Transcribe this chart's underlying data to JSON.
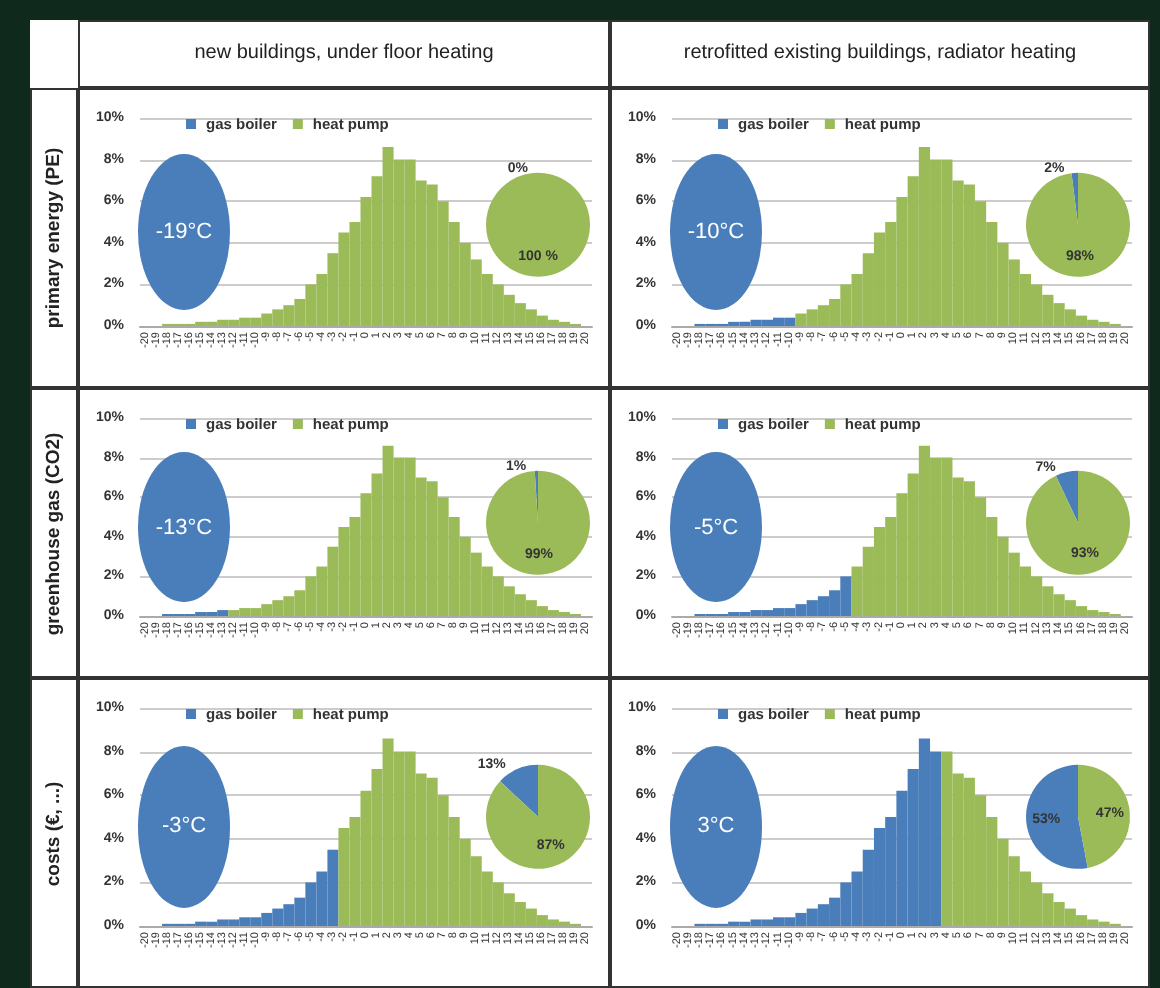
{
  "chart_data": [
    {
      "type": "bar",
      "title": "new buildings, under floor heating",
      "ylabel": "primary energy (PE)",
      "stacked": true,
      "legend": "top left",
      "grid": "y",
      "annotations": [
        "-19°C"
      ],
      "categories": [
        "-20",
        "-19",
        "-18",
        "-17",
        "-16",
        "-15",
        "-14",
        "-13",
        "-12",
        "-11",
        "-10",
        "-9",
        "-8",
        "-7",
        "-6",
        "-5",
        "-4",
        "-3",
        "-2",
        "-1",
        "0",
        "1",
        "2",
        "3",
        "4",
        "5",
        "6",
        "7",
        "8",
        "9",
        "10",
        "11",
        "12",
        "13",
        "14",
        "15",
        "16",
        "17",
        "18",
        "19",
        "20"
      ],
      "ylim": [
        0,
        10
      ],
      "yticks": [
        {
          "value": 0,
          "label": "0%"
        },
        {
          "value": 2,
          "label": "2%"
        },
        {
          "value": 4,
          "label": "4%"
        },
        {
          "value": 6,
          "label": "6%"
        },
        {
          "value": 8,
          "label": "8%"
        },
        {
          "value": 10,
          "label": "10%"
        }
      ],
      "series": [
        {
          "name": "gas boiler",
          "color": "#4a7ebb",
          "values": [
            0,
            0,
            null,
            null,
            null,
            null,
            null,
            null,
            null,
            null,
            null,
            null,
            null,
            null,
            null,
            null,
            null,
            null,
            null,
            null,
            null,
            null,
            null,
            null,
            null,
            null,
            null,
            null,
            null,
            null,
            null,
            null,
            null,
            null,
            null,
            null,
            null,
            null,
            null,
            null,
            null
          ]
        },
        {
          "name": "heat pump",
          "color": "#9bbb59",
          "values": [
            null,
            null,
            0.1,
            0.1,
            0.1,
            0.2,
            0.2,
            0.3,
            0.3,
            0.4,
            0.4,
            0.6,
            0.8,
            1.0,
            1.3,
            2.0,
            2.5,
            3.5,
            4.5,
            5.0,
            6.2,
            7.2,
            8.6,
            8.0,
            8.0,
            7.0,
            6.8,
            6.0,
            5.0,
            4.0,
            3.2,
            2.5,
            2.0,
            1.5,
            1.1,
            0.8,
            0.5,
            0.3,
            0.2,
            0.1,
            0
          ]
        }
      ]
    },
    {
      "type": "pie",
      "categories": [
        null,
        null
      ],
      "values": [
        0,
        100
      ],
      "colors": [
        "#4a7ebb",
        "#9bbb59"
      ],
      "value_labels": [
        "0%",
        "100 %"
      ]
    },
    {
      "type": "bar",
      "title": "retrofitted existing buildings, radiator heating",
      "stacked": true,
      "legend": "top left",
      "grid": "y",
      "annotations": [
        "-10°C"
      ],
      "categories": [
        "-20",
        "-19",
        "-18",
        "-17",
        "-16",
        "-15",
        "-14",
        "-13",
        "-12",
        "-11",
        "-10",
        "-9",
        "-8",
        "-7",
        "-6",
        "-5",
        "-4",
        "-3",
        "-2",
        "-1",
        "0",
        "1",
        "2",
        "3",
        "4",
        "5",
        "6",
        "7",
        "8",
        "9",
        "10",
        "11",
        "12",
        "13",
        "14",
        "15",
        "16",
        "17",
        "18",
        "19",
        "20"
      ],
      "ylim": [
        0,
        10
      ],
      "yticks": [
        {
          "value": 0,
          "label": "0%"
        },
        {
          "value": 2,
          "label": "2%"
        },
        {
          "value": 4,
          "label": "4%"
        },
        {
          "value": 6,
          "label": "6%"
        },
        {
          "value": 8,
          "label": "8%"
        },
        {
          "value": 10,
          "label": "10%"
        }
      ],
      "series": [
        {
          "name": "gas boiler",
          "color": "#4a7ebb",
          "values": [
            0,
            0,
            0.1,
            0.1,
            0.1,
            0.2,
            0.2,
            0.3,
            0.3,
            0.4,
            0.4,
            null,
            null,
            null,
            null,
            null,
            null,
            null,
            null,
            null,
            null,
            null,
            null,
            null,
            null,
            null,
            null,
            null,
            null,
            null,
            null,
            null,
            null,
            null,
            null,
            null,
            null,
            null,
            null,
            null,
            null
          ]
        },
        {
          "name": "heat pump",
          "color": "#9bbb59",
          "values": [
            null,
            null,
            null,
            null,
            null,
            null,
            null,
            null,
            null,
            null,
            null,
            0.6,
            0.8,
            1.0,
            1.3,
            2.0,
            2.5,
            3.5,
            4.5,
            5.0,
            6.2,
            7.2,
            8.6,
            8.0,
            8.0,
            7.0,
            6.8,
            6.0,
            5.0,
            4.0,
            3.2,
            2.5,
            2.0,
            1.5,
            1.1,
            0.8,
            0.5,
            0.3,
            0.2,
            0.1,
            0
          ]
        }
      ]
    },
    {
      "type": "pie",
      "categories": [
        null,
        null
      ],
      "values": [
        2,
        98
      ],
      "colors": [
        "#4a7ebb",
        "#9bbb59"
      ],
      "value_labels": [
        "2%",
        "98%"
      ]
    },
    {
      "type": "bar",
      "ylabel": "greenhouse gas (CO2)",
      "stacked": true,
      "legend": "top left",
      "grid": "y",
      "annotations": [
        "-13°C"
      ],
      "categories": [
        "-20",
        "-19",
        "-18",
        "-17",
        "-16",
        "-15",
        "-14",
        "-13",
        "-12",
        "-11",
        "-10",
        "-9",
        "-8",
        "-7",
        "-6",
        "-5",
        "-4",
        "-3",
        "-2",
        "-1",
        "0",
        "1",
        "2",
        "3",
        "4",
        "5",
        "6",
        "7",
        "8",
        "9",
        "10",
        "11",
        "12",
        "13",
        "14",
        "15",
        "16",
        "17",
        "18",
        "19",
        "20"
      ],
      "ylim": [
        0,
        10
      ],
      "yticks": [
        {
          "value": 0,
          "label": "0%"
        },
        {
          "value": 2,
          "label": "2%"
        },
        {
          "value": 4,
          "label": "4%"
        },
        {
          "value": 6,
          "label": "6%"
        },
        {
          "value": 8,
          "label": "8%"
        },
        {
          "value": 10,
          "label": "10%"
        }
      ],
      "series": [
        {
          "name": "gas boiler",
          "color": "#4a7ebb",
          "values": [
            0,
            0,
            0.1,
            0.1,
            0.1,
            0.2,
            0.2,
            0.3,
            null,
            null,
            null,
            null,
            null,
            null,
            null,
            null,
            null,
            null,
            null,
            null,
            null,
            null,
            null,
            null,
            null,
            null,
            null,
            null,
            null,
            null,
            null,
            null,
            null,
            null,
            null,
            null,
            null,
            null,
            null,
            null,
            null
          ]
        },
        {
          "name": "heat pump",
          "color": "#9bbb59",
          "values": [
            null,
            null,
            null,
            null,
            null,
            null,
            null,
            null,
            0.3,
            0.4,
            0.4,
            0.6,
            0.8,
            1.0,
            1.3,
            2.0,
            2.5,
            3.5,
            4.5,
            5.0,
            6.2,
            7.2,
            8.6,
            8.0,
            8.0,
            7.0,
            6.8,
            6.0,
            5.0,
            4.0,
            3.2,
            2.5,
            2.0,
            1.5,
            1.1,
            0.8,
            0.5,
            0.3,
            0.2,
            0.1,
            0
          ]
        }
      ]
    },
    {
      "type": "pie",
      "categories": [
        null,
        null
      ],
      "values": [
        1,
        99
      ],
      "colors": [
        "#4a7ebb",
        "#9bbb59"
      ],
      "value_labels": [
        "1%",
        "99%"
      ]
    },
    {
      "type": "bar",
      "stacked": true,
      "legend": "top left",
      "grid": "y",
      "annotations": [
        "-5°C"
      ],
      "categories": [
        "-20",
        "-19",
        "-18",
        "-17",
        "-16",
        "-15",
        "-14",
        "-13",
        "-12",
        "-11",
        "-10",
        "-9",
        "-8",
        "-7",
        "-6",
        "-5",
        "-4",
        "-3",
        "-2",
        "-1",
        "0",
        "1",
        "2",
        "3",
        "4",
        "5",
        "6",
        "7",
        "8",
        "9",
        "10",
        "11",
        "12",
        "13",
        "14",
        "15",
        "16",
        "17",
        "18",
        "19",
        "20"
      ],
      "ylim": [
        0,
        10
      ],
      "yticks": [
        {
          "value": 0,
          "label": "0%"
        },
        {
          "value": 2,
          "label": "2%"
        },
        {
          "value": 4,
          "label": "4%"
        },
        {
          "value": 6,
          "label": "6%"
        },
        {
          "value": 8,
          "label": "8%"
        },
        {
          "value": 10,
          "label": "10%"
        }
      ],
      "series": [
        {
          "name": "gas boiler",
          "color": "#4a7ebb",
          "values": [
            0,
            0,
            0.1,
            0.1,
            0.1,
            0.2,
            0.2,
            0.3,
            0.3,
            0.4,
            0.4,
            0.6,
            0.8,
            1.0,
            1.3,
            2.0,
            null,
            null,
            null,
            null,
            null,
            null,
            null,
            null,
            null,
            null,
            null,
            null,
            null,
            null,
            null,
            null,
            null,
            null,
            null,
            null,
            null,
            null,
            null,
            null,
            null
          ]
        },
        {
          "name": "heat pump",
          "color": "#9bbb59",
          "values": [
            null,
            null,
            null,
            null,
            null,
            null,
            null,
            null,
            null,
            null,
            null,
            null,
            null,
            null,
            null,
            null,
            2.5,
            3.5,
            4.5,
            5.0,
            6.2,
            7.2,
            8.6,
            8.0,
            8.0,
            7.0,
            6.8,
            6.0,
            5.0,
            4.0,
            3.2,
            2.5,
            2.0,
            1.5,
            1.1,
            0.8,
            0.5,
            0.3,
            0.2,
            0.1,
            0
          ]
        }
      ]
    },
    {
      "type": "pie",
      "categories": [
        null,
        null
      ],
      "values": [
        7,
        93
      ],
      "colors": [
        "#4a7ebb",
        "#9bbb59"
      ],
      "value_labels": [
        "7%",
        "93%"
      ]
    },
    {
      "type": "bar",
      "ylabel": "costs (€, ...)",
      "stacked": true,
      "legend": "top left",
      "grid": "y",
      "annotations": [
        "-3°C"
      ],
      "categories": [
        "-20",
        "-19",
        "-18",
        "-17",
        "-16",
        "-15",
        "-14",
        "-13",
        "-12",
        "-11",
        "-10",
        "-9",
        "-8",
        "-7",
        "-6",
        "-5",
        "-4",
        "-3",
        "-2",
        "-1",
        "0",
        "1",
        "2",
        "3",
        "4",
        "5",
        "6",
        "7",
        "8",
        "9",
        "10",
        "11",
        "12",
        "13",
        "14",
        "15",
        "16",
        "17",
        "18",
        "19",
        "20"
      ],
      "ylim": [
        0,
        10
      ],
      "yticks": [
        {
          "value": 0,
          "label": "0%"
        },
        {
          "value": 2,
          "label": "2%"
        },
        {
          "value": 4,
          "label": "4%"
        },
        {
          "value": 6,
          "label": "6%"
        },
        {
          "value": 8,
          "label": "8%"
        },
        {
          "value": 10,
          "label": "10%"
        }
      ],
      "series": [
        {
          "name": "gas boiler",
          "color": "#4a7ebb",
          "values": [
            0,
            0,
            0.1,
            0.1,
            0.1,
            0.2,
            0.2,
            0.3,
            0.3,
            0.4,
            0.4,
            0.6,
            0.8,
            1.0,
            1.3,
            2.0,
            2.5,
            3.5,
            null,
            null,
            null,
            null,
            null,
            null,
            null,
            null,
            null,
            null,
            null,
            null,
            null,
            null,
            null,
            null,
            null,
            null,
            null,
            null,
            null,
            null,
            null
          ]
        },
        {
          "name": "heat pump",
          "color": "#9bbb59",
          "values": [
            null,
            null,
            null,
            null,
            null,
            null,
            null,
            null,
            null,
            null,
            null,
            null,
            null,
            null,
            null,
            null,
            null,
            null,
            4.5,
            5.0,
            6.2,
            7.2,
            8.6,
            8.0,
            8.0,
            7.0,
            6.8,
            6.0,
            5.0,
            4.0,
            3.2,
            2.5,
            2.0,
            1.5,
            1.1,
            0.8,
            0.5,
            0.3,
            0.2,
            0.1,
            0
          ]
        }
      ]
    },
    {
      "type": "pie",
      "categories": [
        null,
        null
      ],
      "values": [
        13,
        87
      ],
      "colors": [
        "#4a7ebb",
        "#9bbb59"
      ],
      "value_labels": [
        "13%",
        "87%"
      ]
    },
    {
      "type": "bar",
      "stacked": true,
      "legend": "top left",
      "grid": "y",
      "annotations": [
        "3°C"
      ],
      "categories": [
        "-20",
        "-19",
        "-18",
        "-17",
        "-16",
        "-15",
        "-14",
        "-13",
        "-12",
        "-11",
        "-10",
        "-9",
        "-8",
        "-7",
        "-6",
        "-5",
        "-4",
        "-3",
        "-2",
        "-1",
        "0",
        "1",
        "2",
        "3",
        "4",
        "5",
        "6",
        "7",
        "8",
        "9",
        "10",
        "11",
        "12",
        "13",
        "14",
        "15",
        "16",
        "17",
        "18",
        "19",
        "20"
      ],
      "ylim": [
        0,
        10
      ],
      "yticks": [
        {
          "value": 0,
          "label": "0%"
        },
        {
          "value": 2,
          "label": "2%"
        },
        {
          "value": 4,
          "label": "4%"
        },
        {
          "value": 6,
          "label": "6%"
        },
        {
          "value": 8,
          "label": "8%"
        },
        {
          "value": 10,
          "label": "10%"
        }
      ],
      "series": [
        {
          "name": "gas boiler",
          "color": "#4a7ebb",
          "values": [
            0,
            0,
            0.1,
            0.1,
            0.1,
            0.2,
            0.2,
            0.3,
            0.3,
            0.4,
            0.4,
            0.6,
            0.8,
            1.0,
            1.3,
            2.0,
            2.5,
            3.5,
            4.5,
            5.0,
            6.2,
            7.2,
            8.6,
            8.0,
            null,
            null,
            null,
            null,
            null,
            null,
            null,
            null,
            null,
            null,
            null,
            null,
            null,
            null,
            null,
            null,
            null
          ]
        },
        {
          "name": "heat pump",
          "color": "#9bbb59",
          "values": [
            null,
            null,
            null,
            null,
            null,
            null,
            null,
            null,
            null,
            null,
            null,
            null,
            null,
            null,
            null,
            null,
            null,
            null,
            null,
            null,
            null,
            null,
            null,
            null,
            8.0,
            7.0,
            6.8,
            6.0,
            5.0,
            4.0,
            3.2,
            2.5,
            2.0,
            1.5,
            1.1,
            0.8,
            0.5,
            0.3,
            0.2,
            0.1,
            0
          ]
        }
      ]
    },
    {
      "type": "pie",
      "categories": [
        null,
        null
      ],
      "values": [
        53,
        47
      ],
      "colors": [
        "#4a7ebb",
        "#9bbb59"
      ],
      "value_labels": [
        "53%",
        "47%"
      ]
    }
  ]
}
